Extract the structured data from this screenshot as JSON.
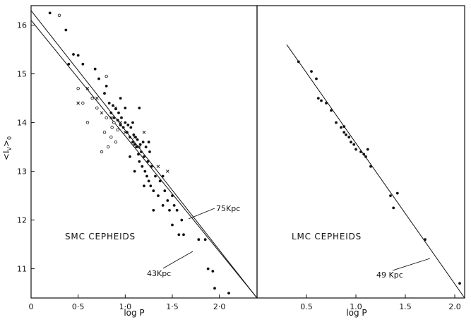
{
  "chart_data": [
    {
      "type": "scatter",
      "panel": "left",
      "annotation": "SMC CEPHEIDS",
      "xlabel": "log P",
      "ylabel": "<I_V>_0",
      "ylabel_main": "<I",
      "ylabel_sub": "V",
      "ylabel_close": ">",
      "ylabel_sub0": "0",
      "xlim": [
        0,
        2.4
      ],
      "ylim": [
        10.4,
        16.4
      ],
      "y_inverted": true,
      "x_ticks": [
        0,
        0.5,
        1.0,
        1.5,
        2.0
      ],
      "x_tick_labels": [
        "0",
        "0·5",
        "1·0",
        "1·5",
        "2·0"
      ],
      "y_ticks": [
        11,
        12,
        13,
        14,
        15,
        16
      ],
      "y_tick_labels": [
        "11",
        "12",
        "13",
        "14",
        "15",
        "16"
      ],
      "lines": [
        {
          "label": "75Kpc",
          "x": [
            0,
            2.4
          ],
          "y": [
            16.3,
            10.4
          ]
        },
        {
          "label": "43Kpc",
          "x": [
            0,
            2.4
          ],
          "y": [
            16.1,
            10.4
          ]
        }
      ],
      "series": [
        {
          "marker": "filled",
          "points": [
            [
              0.2,
              16.25
            ],
            [
              0.37,
              15.9
            ],
            [
              0.4,
              15.2
            ],
            [
              0.45,
              15.4
            ],
            [
              0.5,
              15.38
            ],
            [
              0.55,
              15.2
            ],
            [
              0.68,
              15.1
            ],
            [
              0.72,
              14.9
            ],
            [
              0.78,
              14.6
            ],
            [
              0.8,
              14.75
            ],
            [
              0.83,
              14.4
            ],
            [
              0.85,
              14.2
            ],
            [
              0.87,
              14.35
            ],
            [
              0.88,
              14.1
            ],
            [
              0.9,
              14.28
            ],
            [
              0.92,
              14.05
            ],
            [
              0.93,
              14.2
            ],
            [
              0.95,
              13.95
            ],
            [
              0.96,
              14.1
            ],
            [
              0.98,
              13.9
            ],
            [
              1.0,
              14.0
            ],
            [
              1.02,
              13.8
            ],
            [
              1.03,
              13.95
            ],
            [
              1.05,
              13.7
            ],
            [
              1.06,
              13.9
            ],
            [
              1.08,
              13.6
            ],
            [
              1.09,
              13.75
            ],
            [
              1.1,
              13.55
            ],
            [
              1.11,
              13.7
            ],
            [
              1.12,
              13.5
            ],
            [
              1.13,
              13.65
            ],
            [
              1.14,
              13.35
            ],
            [
              1.15,
              13.2
            ],
            [
              1.16,
              13.55
            ],
            [
              1.17,
              13.4
            ],
            [
              1.18,
              13.1
            ],
            [
              1.19,
              13.6
            ],
            [
              1.2,
              13.3
            ],
            [
              1.21,
              13.0
            ],
            [
              1.22,
              13.5
            ],
            [
              1.23,
              12.9
            ],
            [
              1.24,
              13.2
            ],
            [
              1.25,
              12.8
            ],
            [
              1.26,
              13.4
            ],
            [
              1.27,
              12.7
            ],
            [
              1.28,
              13.1
            ],
            [
              1.3,
              12.6
            ],
            [
              1.32,
              12.9
            ],
            [
              1.35,
              12.5
            ],
            [
              1.37,
              12.8
            ],
            [
              1.4,
              12.3
            ],
            [
              1.42,
              12.6
            ],
            [
              1.45,
              12.4
            ],
            [
              1.47,
              12.2
            ],
            [
              1.5,
              12.5
            ],
            [
              1.52,
              12.3
            ],
            [
              1.55,
              12.2
            ],
            [
              1.57,
              11.7
            ],
            [
              1.6,
              12.0
            ],
            [
              1.62,
              11.7
            ],
            [
              1.5,
              11.9
            ],
            [
              1.78,
              11.6
            ],
            [
              1.85,
              11.6
            ],
            [
              1.88,
              11.0
            ],
            [
              1.93,
              10.95
            ],
            [
              1.95,
              10.6
            ],
            [
              2.1,
              10.5
            ],
            [
              1.3,
              12.2
            ],
            [
              1.2,
              12.7
            ],
            [
              1.1,
              13.0
            ],
            [
              1.05,
              13.3
            ],
            [
              1.15,
              14.3
            ],
            [
              0.95,
              14.5
            ],
            [
              1.0,
              14.3
            ],
            [
              1.08,
              14.0
            ],
            [
              1.25,
              13.6
            ],
            [
              1.4,
              12.9
            ]
          ]
        },
        {
          "marker": "open",
          "points": [
            [
              0.3,
              16.2
            ],
            [
              0.5,
              14.7
            ],
            [
              0.55,
              14.4
            ],
            [
              0.6,
              14.0
            ],
            [
              0.65,
              14.5
            ],
            [
              0.7,
              14.3
            ],
            [
              0.75,
              13.4
            ],
            [
              0.78,
              13.8
            ],
            [
              0.82,
              13.5
            ],
            [
              0.85,
              13.7
            ],
            [
              0.88,
              14.0
            ],
            [
              0.9,
              13.6
            ],
            [
              0.92,
              13.85
            ],
            [
              0.8,
              14.95
            ],
            [
              0.8,
              14.1
            ],
            [
              0.86,
              13.9
            ]
          ]
        },
        {
          "marker": "cross",
          "points": [
            [
              0.5,
              14.4
            ],
            [
              0.6,
              14.7
            ],
            [
              0.7,
              14.5
            ],
            [
              0.85,
              14.1
            ],
            [
              0.9,
              14.3
            ],
            [
              1.0,
              13.8
            ],
            [
              1.1,
              13.7
            ],
            [
              1.15,
              13.5
            ],
            [
              1.2,
              13.8
            ],
            [
              1.35,
              13.1
            ],
            [
              1.45,
              13.0
            ],
            [
              0.75,
              14.2
            ],
            [
              0.95,
              14.0
            ]
          ]
        }
      ]
    },
    {
      "type": "scatter",
      "panel": "right",
      "annotation": "LMC CEPHEIDS",
      "xlabel": "log P",
      "xlim": [
        0,
        2.1
      ],
      "ylim": [
        10.4,
        16.4
      ],
      "y_inverted": true,
      "x_ticks": [
        0.5,
        1.0,
        1.5,
        2.0
      ],
      "x_tick_labels": [
        "0.5",
        "1.0",
        "1.5",
        "2.0"
      ],
      "lines": [
        {
          "label": "49 Kpc",
          "x": [
            0.3,
            2.1
          ],
          "y": [
            15.6,
            10.4
          ]
        }
      ],
      "series": [
        {
          "marker": "filled",
          "points": [
            [
              0.42,
              15.25
            ],
            [
              0.55,
              15.05
            ],
            [
              0.6,
              14.9
            ],
            [
              0.62,
              14.5
            ],
            [
              0.65,
              14.45
            ],
            [
              0.7,
              14.4
            ],
            [
              0.75,
              14.25
            ],
            [
              0.8,
              14.0
            ],
            [
              0.85,
              13.9
            ],
            [
              0.88,
              13.8
            ],
            [
              0.9,
              13.75
            ],
            [
              0.93,
              13.7
            ],
            [
              0.95,
              13.6
            ],
            [
              0.98,
              13.55
            ],
            [
              1.0,
              13.45
            ],
            [
              1.05,
              13.4
            ],
            [
              1.08,
              13.35
            ],
            [
              1.1,
              13.3
            ],
            [
              1.12,
              13.45
            ],
            [
              1.15,
              13.1
            ],
            [
              1.35,
              12.5
            ],
            [
              1.38,
              12.25
            ],
            [
              1.42,
              12.55
            ],
            [
              1.7,
              11.6
            ],
            [
              2.05,
              10.7
            ],
            [
              0.88,
              13.92
            ]
          ]
        }
      ]
    }
  ]
}
